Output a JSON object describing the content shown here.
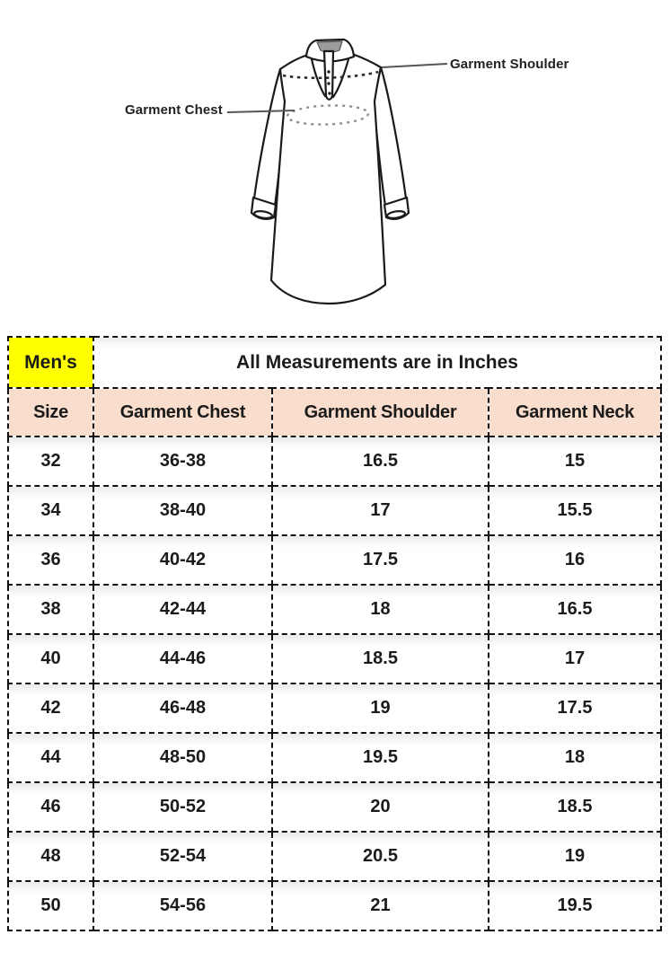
{
  "diagram": {
    "chest_label": "Garment Chest",
    "shoulder_label": "Garment Shoulder"
  },
  "table": {
    "mens_label": "Men's",
    "title": "All Measurements are in Inches",
    "columns": [
      "Size",
      "Garment Chest",
      "Garment Shoulder",
      "Garment Neck"
    ],
    "rows": [
      [
        "32",
        "36-38",
        "16.5",
        "15"
      ],
      [
        "34",
        "38-40",
        "17",
        "15.5"
      ],
      [
        "36",
        "40-42",
        "17.5",
        "16"
      ],
      [
        "38",
        "42-44",
        "18",
        "16.5"
      ],
      [
        "40",
        "44-46",
        "18.5",
        "17"
      ],
      [
        "42",
        "46-48",
        "19",
        "17.5"
      ],
      [
        "44",
        "48-50",
        "19.5",
        "18"
      ],
      [
        "46",
        "50-52",
        "20",
        "18.5"
      ],
      [
        "48",
        "52-54",
        "20.5",
        "19"
      ],
      [
        "50",
        "54-56",
        "21",
        "19.5"
      ]
    ]
  },
  "colors": {
    "mens_bg": "#ffff00",
    "subheader_bg": "#f9ddcd",
    "border": "#111111",
    "text": "#1b1b1b"
  }
}
